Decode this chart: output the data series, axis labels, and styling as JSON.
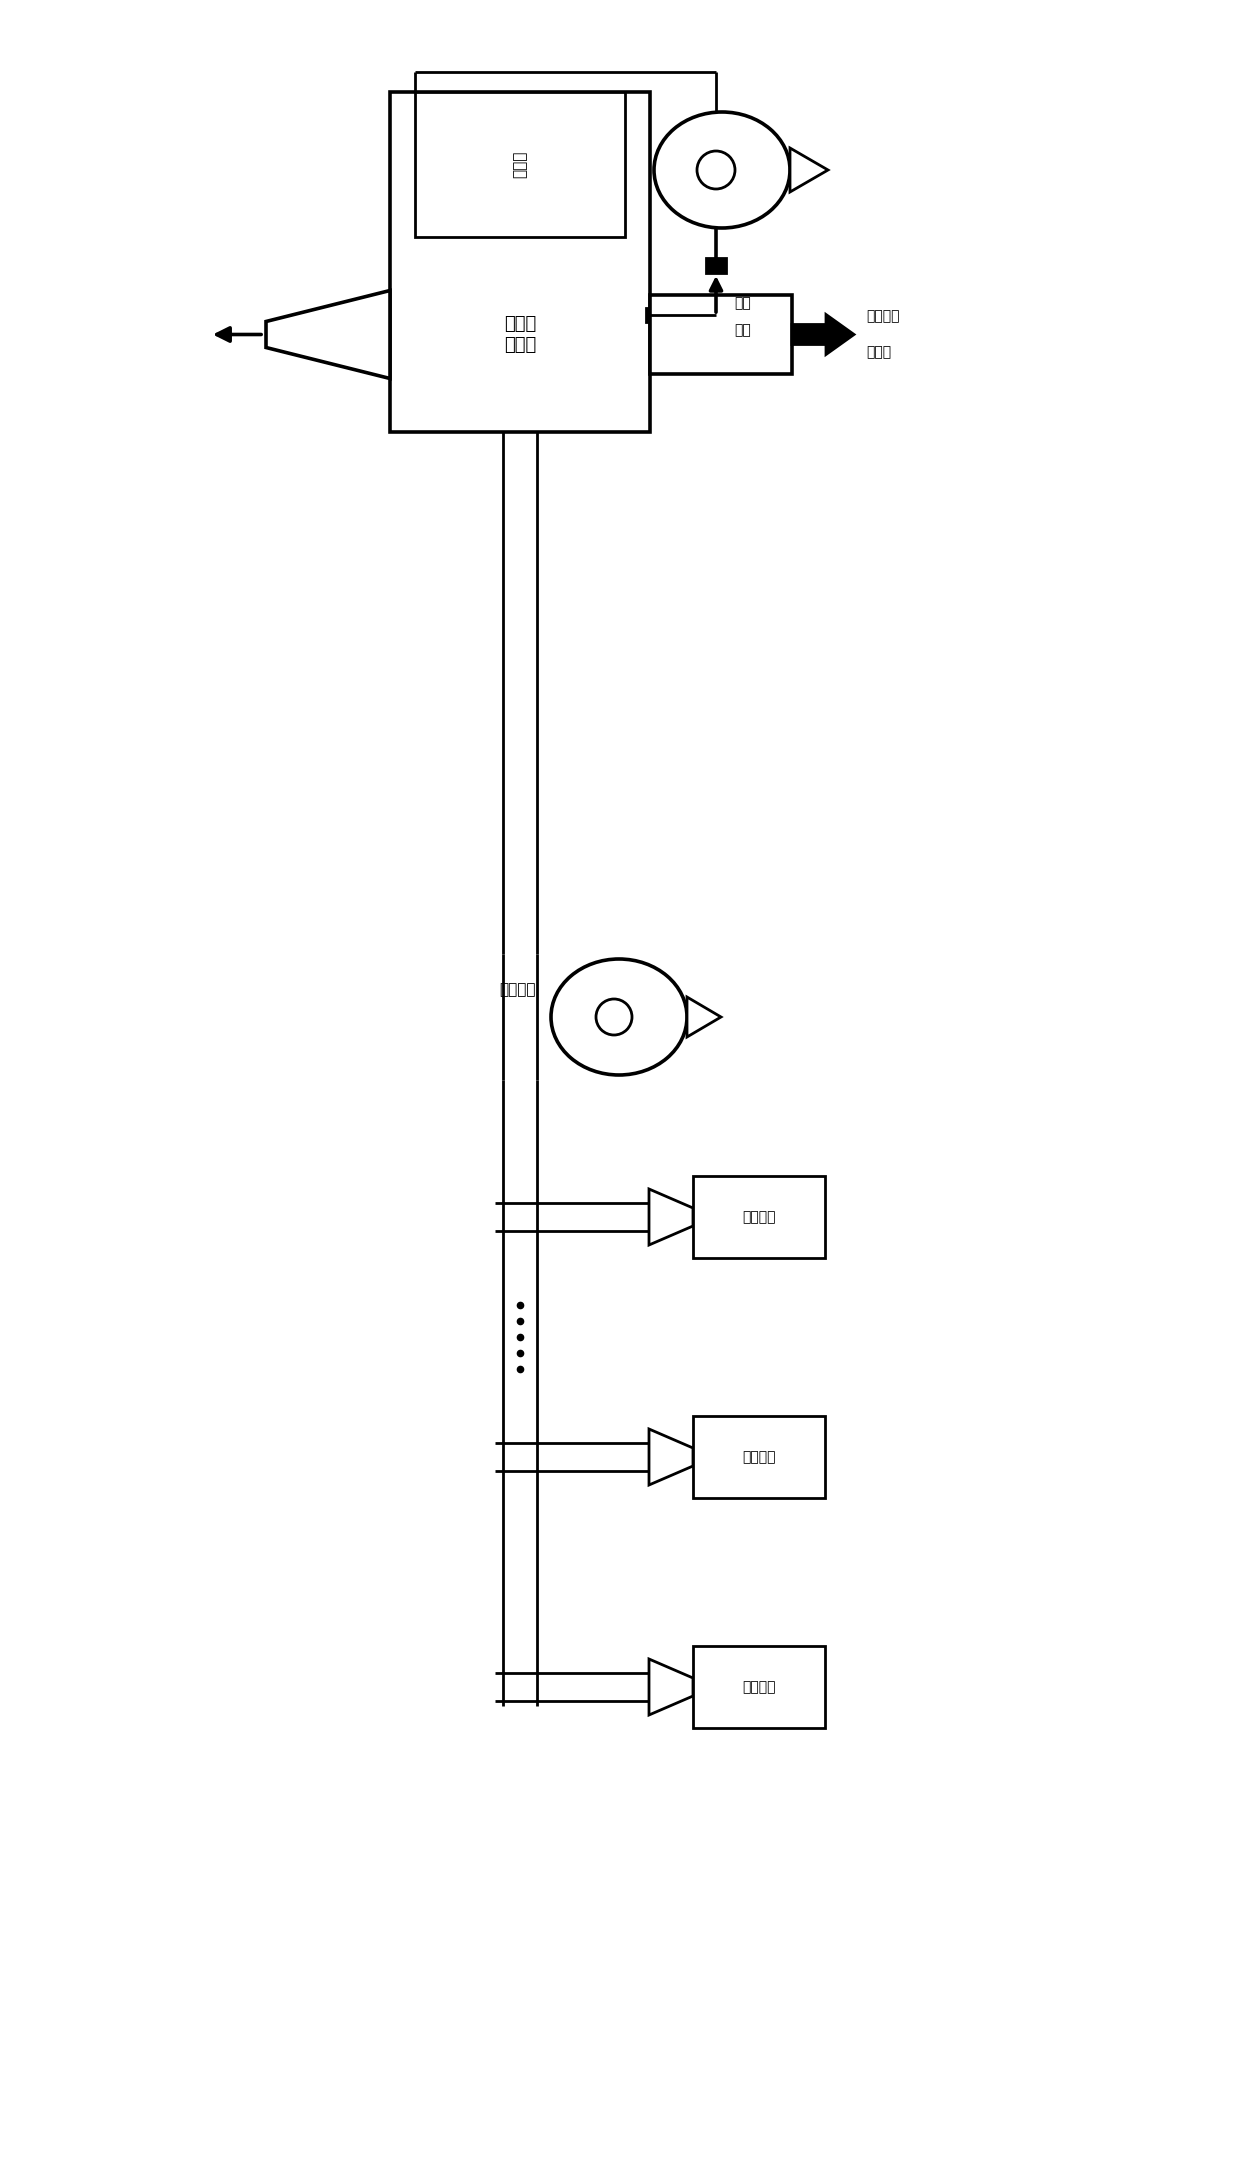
{
  "bg_color": "#ffffff",
  "lc": "#000000",
  "labels": {
    "high_pressure_pump": "高压泵",
    "purif_water_1": "净化",
    "purif_water_2": "水水",
    "gas_treat": "废气处\n理系统",
    "water_treat_1": "至废水处",
    "water_treat_2": "理系统",
    "neg_pressure": "负压系统",
    "op_station": "操作工位"
  },
  "fig_w": 12.4,
  "fig_h": 21.72,
  "dpi": 100
}
